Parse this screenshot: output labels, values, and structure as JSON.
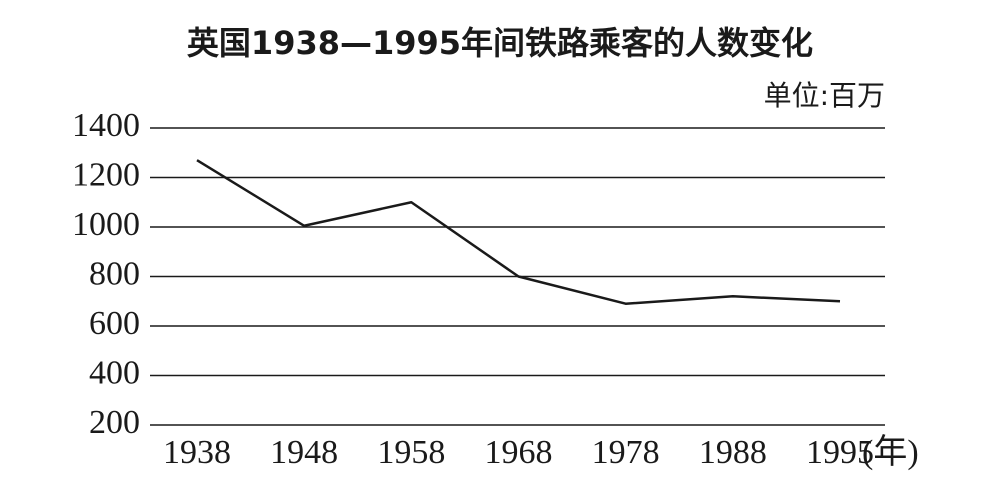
{
  "chart_data": {
    "type": "line",
    "title": "英国1938—1995年间铁路乘客的人数变化",
    "unit": "单位:百万",
    "x_label": "(年)",
    "categories": [
      "1938",
      "1948",
      "1958",
      "1968",
      "1978",
      "1988",
      "1995"
    ],
    "series": [
      {
        "name": "铁路乘客人数",
        "color": "#1a1a1a",
        "values": [
          1270,
          1005,
          1100,
          800,
          690,
          720,
          700
        ]
      }
    ],
    "ylim": [
      200,
      1400
    ],
    "yticks": [
      200,
      400,
      600,
      800,
      1000,
      1200,
      1400
    ],
    "grid": true
  }
}
